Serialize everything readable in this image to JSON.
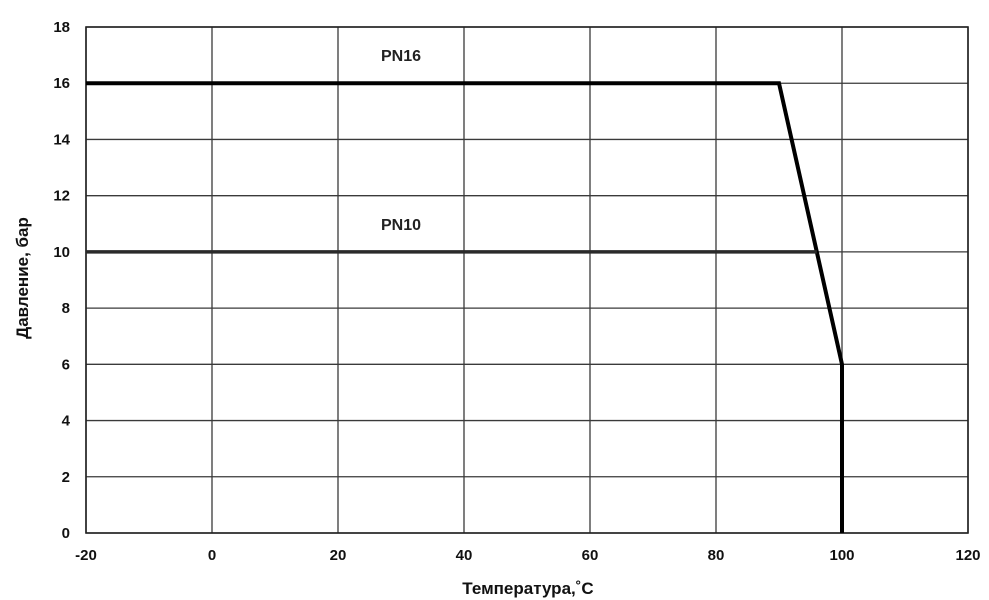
{
  "chart_data": {
    "type": "line",
    "title": "",
    "xlabel": "Температура,˚С",
    "ylabel": "Давление, бар",
    "xlim": [
      -20,
      120
    ],
    "ylim": [
      0,
      18
    ],
    "x_ticks": [
      -20,
      0,
      20,
      40,
      60,
      80,
      100,
      120
    ],
    "y_ticks": [
      0,
      2,
      4,
      6,
      8,
      10,
      12,
      14,
      16,
      18
    ],
    "grid": true,
    "legend": "none",
    "series": [
      {
        "name": "PN16",
        "points": [
          [
            -20,
            16
          ],
          [
            90,
            16
          ],
          [
            100,
            6
          ],
          [
            100,
            0
          ]
        ],
        "label_at": [
          30,
          17
        ],
        "color": "#000000"
      },
      {
        "name": "PN10",
        "points": [
          [
            -20,
            10
          ],
          [
            96,
            10
          ]
        ],
        "label_at": [
          30,
          11
        ],
        "color": "#2a2a2a"
      }
    ],
    "colors": {
      "grid": "#3a3a3a",
      "background": "#ffffff"
    }
  }
}
